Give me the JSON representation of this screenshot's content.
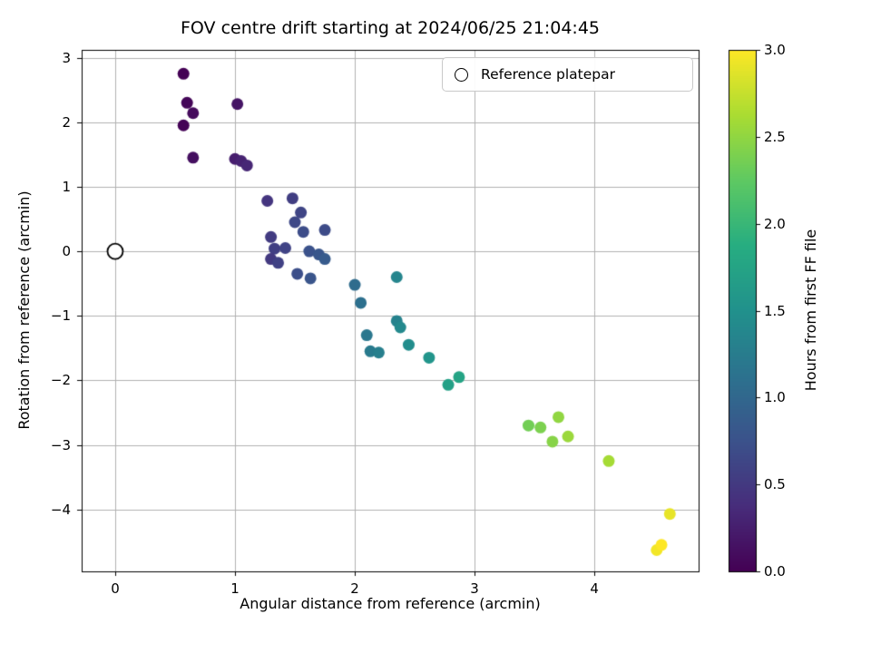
{
  "chart_data": {
    "type": "scatter",
    "title": "FOV centre drift starting at 2024/06/25 21:04:45",
    "xlabel": "Angular distance from reference (arcmin)",
    "ylabel": "Rotation from reference (arcmin)",
    "xlim": [
      -0.28,
      4.87
    ],
    "ylim": [
      -4.96,
      3.12
    ],
    "xticks": [
      0,
      1,
      2,
      3,
      4
    ],
    "yticks": [
      -4,
      -3,
      -2,
      -1,
      0,
      1,
      2,
      3
    ],
    "grid": true,
    "grid_color": "#b0b0b0",
    "spine_color": "#000000",
    "legend": {
      "position": "upper right",
      "items": [
        {
          "label": "Reference platepar",
          "marker": "open-circle"
        }
      ]
    },
    "reference_point": {
      "x": 0,
      "y": 0
    },
    "colorbar": {
      "label": "Hours from first FF file",
      "min": 0.0,
      "max": 3.0,
      "ticks": [
        0.0,
        0.5,
        1.0,
        1.5,
        2.0,
        2.5,
        3.0
      ],
      "colormap": "viridis"
    },
    "colormap_stops": [
      "#440154",
      "#472d7b",
      "#3b528b",
      "#2c728e",
      "#21918c",
      "#27ad81",
      "#5ec962",
      "#aadc32",
      "#fde725"
    ],
    "points_format": [
      "angular_distance_arcmin",
      "rotation_arcmin",
      "hours_from_first_ff"
    ],
    "points": [
      [
        0.57,
        2.75,
        0.0
      ],
      [
        0.6,
        2.3,
        0.04
      ],
      [
        0.65,
        2.14,
        0.08
      ],
      [
        0.57,
        1.95,
        0.02
      ],
      [
        0.65,
        1.45,
        0.12
      ],
      [
        1.02,
        2.28,
        0.16
      ],
      [
        1.0,
        1.43,
        0.24
      ],
      [
        1.05,
        1.4,
        0.28
      ],
      [
        1.1,
        1.33,
        0.32
      ],
      [
        1.27,
        0.78,
        0.46
      ],
      [
        1.3,
        0.22,
        0.52
      ],
      [
        1.33,
        0.04,
        0.56
      ],
      [
        1.3,
        -0.12,
        0.5
      ],
      [
        1.36,
        -0.18,
        0.58
      ],
      [
        1.42,
        0.05,
        0.6
      ],
      [
        1.48,
        0.82,
        0.55
      ],
      [
        1.5,
        0.45,
        0.65
      ],
      [
        1.55,
        0.6,
        0.62
      ],
      [
        1.57,
        0.3,
        0.7
      ],
      [
        1.52,
        -0.35,
        0.72
      ],
      [
        1.62,
        0.0,
        0.75
      ],
      [
        1.63,
        -0.42,
        0.78
      ],
      [
        1.7,
        -0.05,
        0.8
      ],
      [
        1.75,
        -0.12,
        0.85
      ],
      [
        1.75,
        0.33,
        0.68
      ],
      [
        2.0,
        -0.52,
        1.05
      ],
      [
        2.05,
        -0.8,
        1.1
      ],
      [
        2.1,
        -1.3,
        1.18
      ],
      [
        2.13,
        -1.55,
        1.22
      ],
      [
        2.2,
        -1.57,
        1.28
      ],
      [
        2.35,
        -0.4,
        1.35
      ],
      [
        2.35,
        -1.08,
        1.32
      ],
      [
        2.38,
        -1.18,
        1.4
      ],
      [
        2.45,
        -1.45,
        1.45
      ],
      [
        2.62,
        -1.65,
        1.55
      ],
      [
        2.78,
        -2.07,
        1.7
      ],
      [
        2.87,
        -1.95,
        1.75
      ],
      [
        3.45,
        -2.7,
        2.35
      ],
      [
        3.55,
        -2.73,
        2.4
      ],
      [
        3.65,
        -2.95,
        2.45
      ],
      [
        3.7,
        -2.57,
        2.5
      ],
      [
        3.78,
        -2.87,
        2.55
      ],
      [
        4.12,
        -3.25,
        2.6
      ],
      [
        4.63,
        -4.07,
        2.9
      ],
      [
        4.52,
        -4.63,
        2.95
      ],
      [
        4.56,
        -4.55,
        3.0
      ]
    ]
  }
}
